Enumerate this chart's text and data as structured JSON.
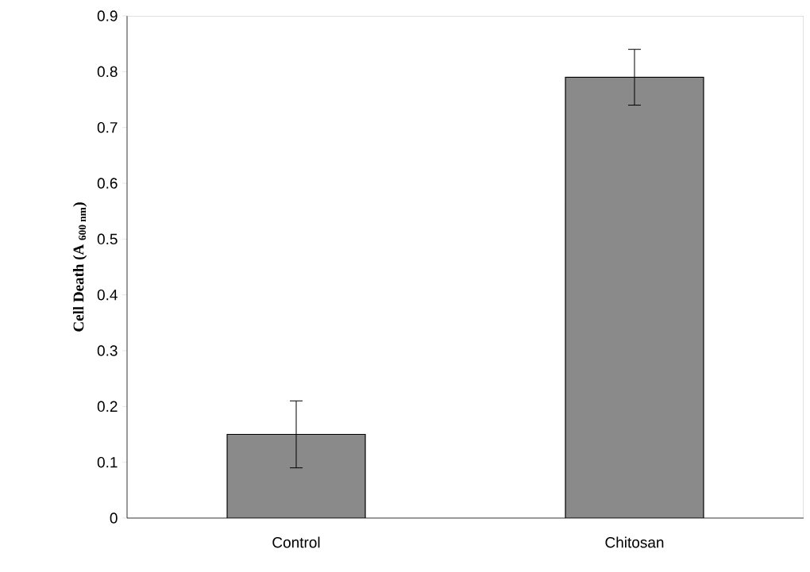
{
  "chart_data": {
    "type": "bar",
    "ylabel": "Cell Death (A $_{600 nm}$)",
    "categories": [
      "Control",
      "Chitosan"
    ],
    "values": [
      0.15,
      0.79
    ],
    "errors": [
      0.06,
      0.05
    ],
    "color": "#8a8a8a",
    "ylim": [
      0,
      0.9
    ],
    "yticks": [
      0,
      0.1,
      0.2,
      0.3,
      0.4,
      0.5,
      0.6,
      0.7,
      0.8,
      0.9
    ]
  }
}
